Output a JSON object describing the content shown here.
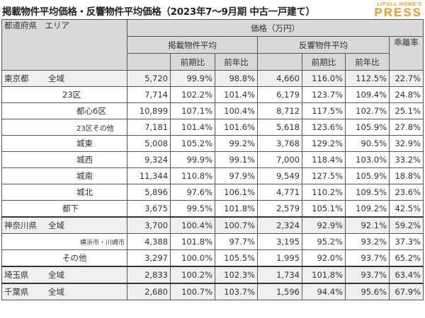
{
  "title": "掲載物件平均価格・反響物件平均価格（2023年7～9月期 中古一戸建て）",
  "logo": {
    "line1": "LIFULL HOME'S",
    "line2": "PRESS"
  },
  "header": {
    "region": "都道府県　エリア",
    "price": "価格（万円）",
    "listed": "掲載物件平均",
    "response": "反響物件平均",
    "gap": "乖離率",
    "qoq": "前期比",
    "yoy": "前年比"
  },
  "rows": [
    {
      "pref": "東京都",
      "area": "全域",
      "level": 0,
      "v": [
        "5,720",
        "99.9%",
        "98.8%",
        "4,660",
        "116.0%",
        "112.5%",
        "22.7%"
      ]
    },
    {
      "pref": "",
      "area": "23区",
      "level": 1,
      "v": [
        "7,714",
        "102.2%",
        "101.4%",
        "6,179",
        "123.7%",
        "109.4%",
        "24.8%"
      ]
    },
    {
      "pref": "",
      "area": "都心6区",
      "level": 2,
      "v": [
        "10,899",
        "107.1%",
        "100.4%",
        "8,712",
        "117.5%",
        "102.7%",
        "25.1%"
      ]
    },
    {
      "pref": "",
      "area": "23区その他",
      "level": 2,
      "v": [
        "7,181",
        "101.4%",
        "101.6%",
        "5,618",
        "123.6%",
        "105.9%",
        "27.8%"
      ]
    },
    {
      "pref": "",
      "area": "城東",
      "level": 2,
      "v": [
        "5,008",
        "105.2%",
        "99.2%",
        "3,768",
        "129.2%",
        "90.5%",
        "32.9%"
      ]
    },
    {
      "pref": "",
      "area": "城西",
      "level": 2,
      "v": [
        "9,324",
        "99.9%",
        "99.1%",
        "7,000",
        "118.4%",
        "103.0%",
        "33.2%"
      ]
    },
    {
      "pref": "",
      "area": "城南",
      "level": 2,
      "v": [
        "11,344",
        "110.8%",
        "97.9%",
        "9,549",
        "127.5%",
        "105.9%",
        "18.8%"
      ]
    },
    {
      "pref": "",
      "area": "城北",
      "level": 2,
      "v": [
        "5,896",
        "97.6%",
        "106.1%",
        "4,771",
        "110.2%",
        "109.5%",
        "23.6%"
      ]
    },
    {
      "pref": "",
      "area": "都下",
      "level": 1,
      "v": [
        "3,675",
        "99.5%",
        "101.8%",
        "2,579",
        "105.1%",
        "109.2%",
        "42.5%"
      ]
    },
    {
      "pref": "神奈川県",
      "area": "全域",
      "level": 0,
      "v": [
        "3,700",
        "100.4%",
        "100.7%",
        "2,324",
        "92.9%",
        "92.1%",
        "59.2%"
      ]
    },
    {
      "pref": "",
      "area": "横浜市・川崎市",
      "level": 3,
      "v": [
        "4,388",
        "101.8%",
        "97.7%",
        "3,195",
        "95.2%",
        "93.2%",
        "37.3%"
      ]
    },
    {
      "pref": "",
      "area": "その他",
      "level": 1,
      "v": [
        "3,297",
        "100.0%",
        "105.5%",
        "1,995",
        "92.0%",
        "93.7%",
        "65.2%"
      ]
    },
    {
      "pref": "埼玉県",
      "area": "全域",
      "level": 0,
      "v": [
        "2,833",
        "100.2%",
        "102.3%",
        "1,734",
        "101.8%",
        "93.7%",
        "63.4%"
      ]
    },
    {
      "pref": "千葉県",
      "area": "全域",
      "level": 0,
      "v": [
        "2,680",
        "100.7%",
        "103.7%",
        "1,596",
        "94.4%",
        "95.6%",
        "67.9%"
      ]
    }
  ]
}
